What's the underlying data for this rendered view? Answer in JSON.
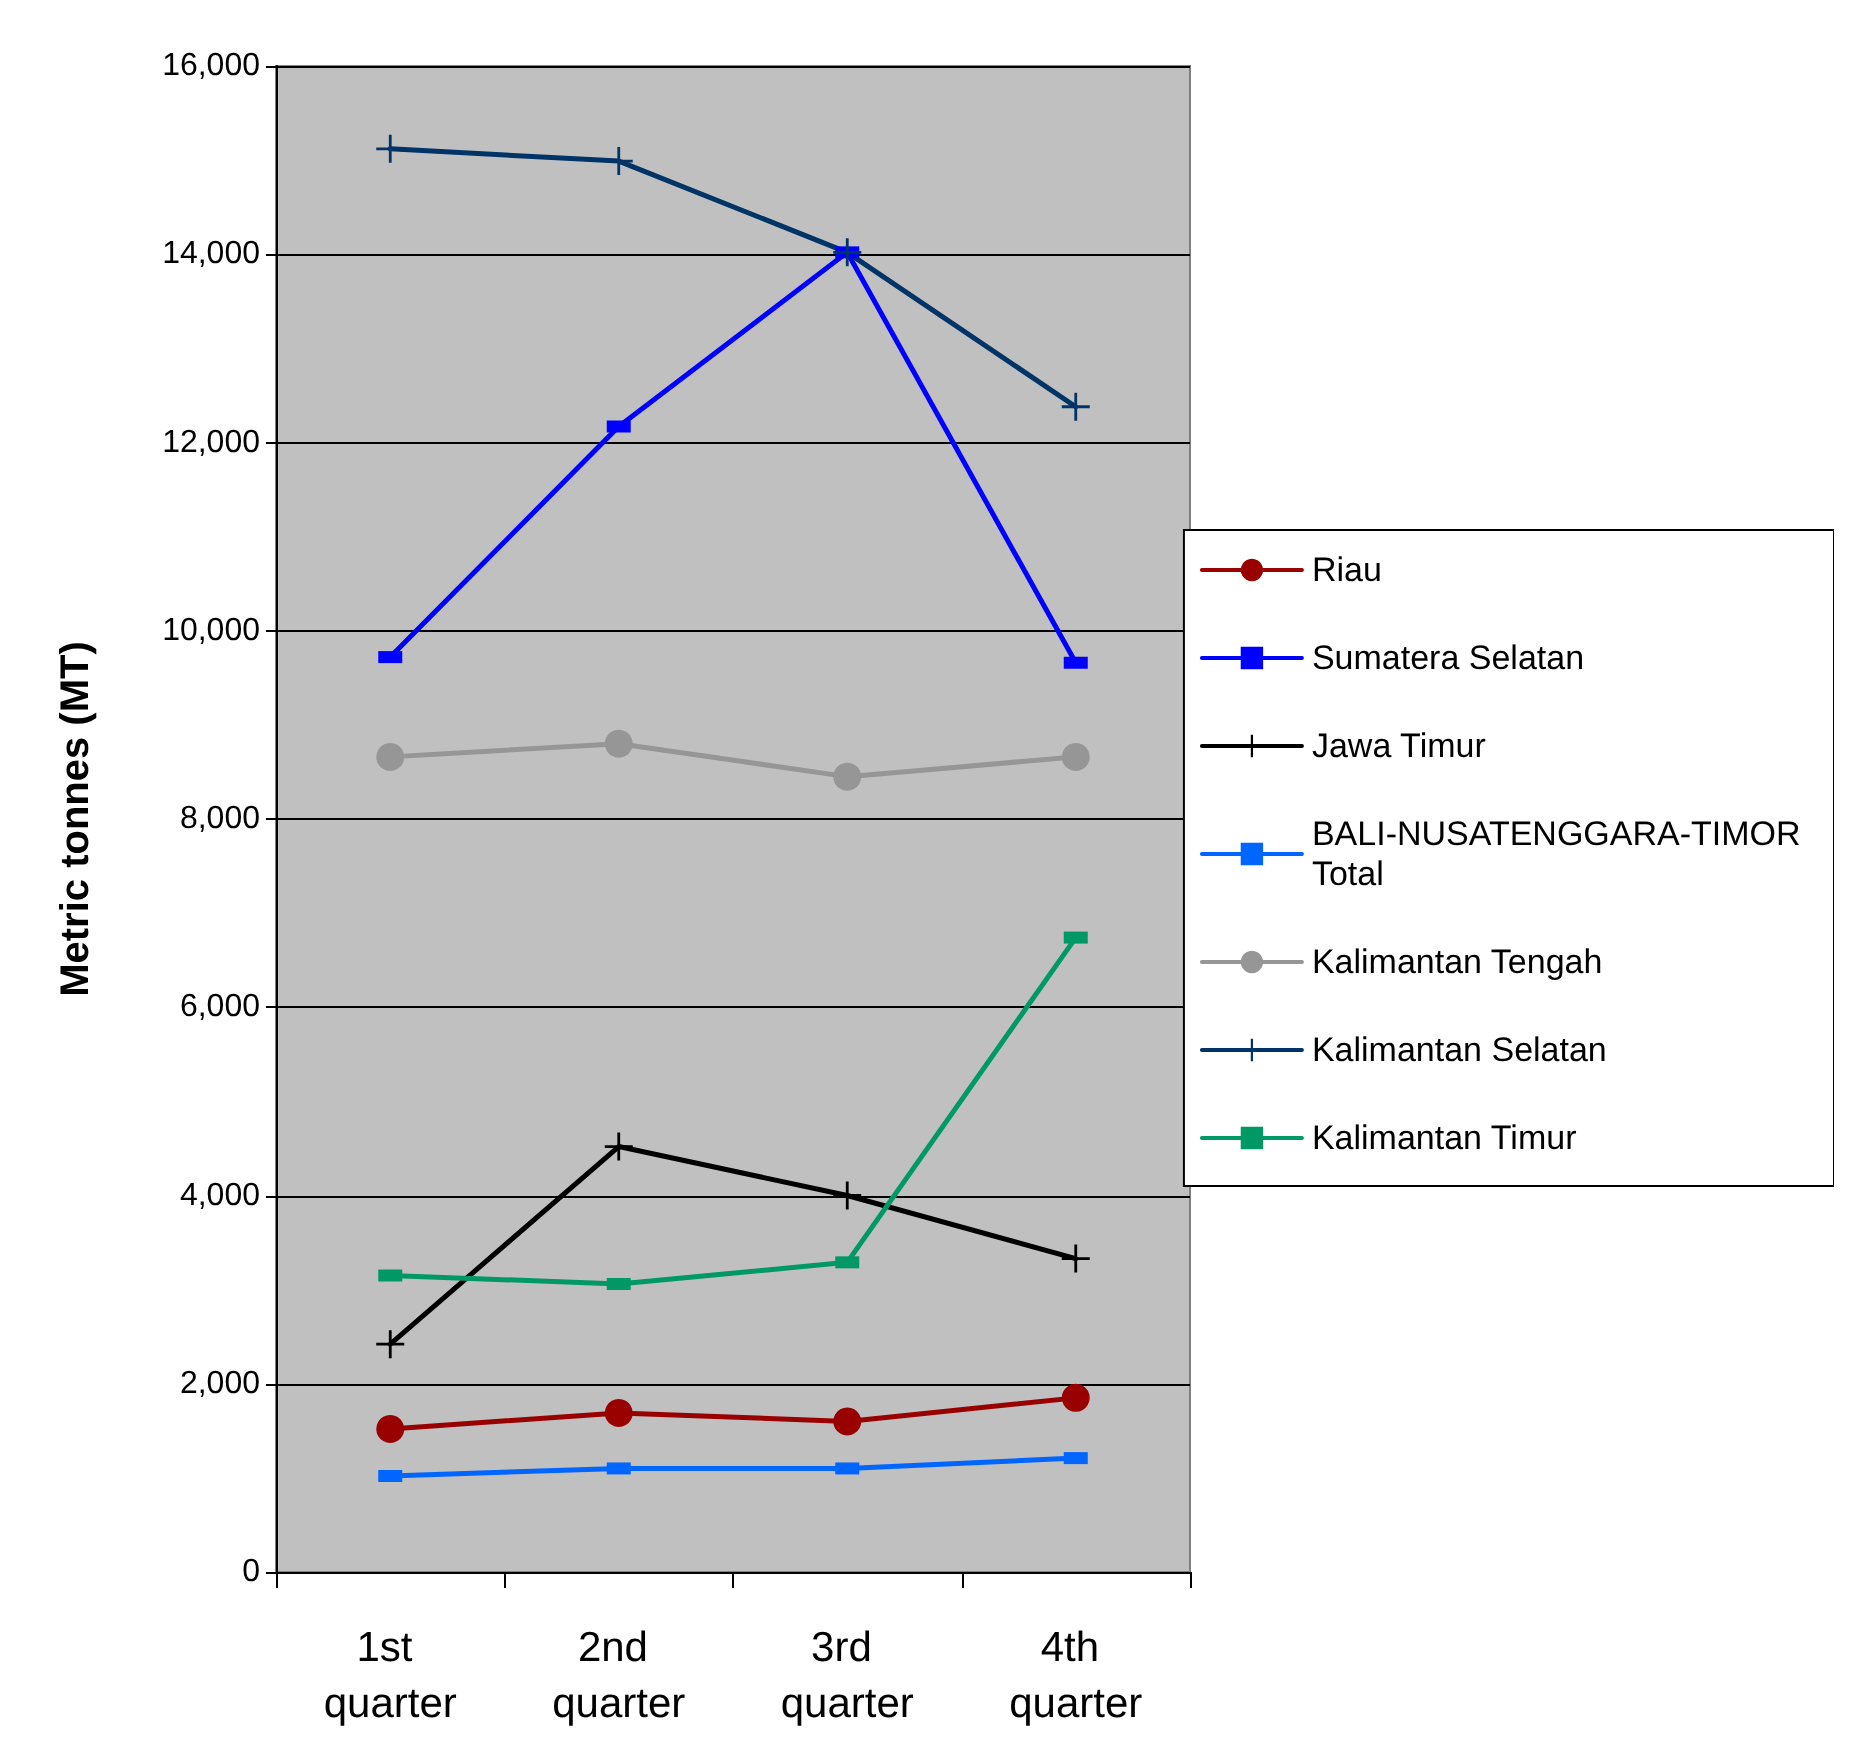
{
  "chart_data": {
    "type": "line",
    "ylabel": "Metric tonnes (MT)",
    "categories": [
      "1st quarter",
      "2nd quarter",
      "3rd quarter",
      "4th quarter"
    ],
    "ylim": [
      0,
      16000
    ],
    "yticks": [
      {
        "value": 0,
        "label": "0"
      },
      {
        "value": 2000,
        "label": "2,000"
      },
      {
        "value": 4000,
        "label": "4,000"
      },
      {
        "value": 6000,
        "label": "6,000"
      },
      {
        "value": 8000,
        "label": "8,000"
      },
      {
        "value": 10000,
        "label": "10,000"
      },
      {
        "value": 12000,
        "label": "12,000"
      },
      {
        "value": 14000,
        "label": "14,000"
      },
      {
        "value": 16000,
        "label": "16,000"
      }
    ],
    "grid": "y",
    "legend": "right",
    "line_style": "solid",
    "series": [
      {
        "name": "Riau",
        "color": "#990000",
        "marker": "circle",
        "values": [
          1520,
          1690,
          1600,
          1850
        ]
      },
      {
        "name": "Sumatera Selatan",
        "color": "#0000ff",
        "marker": "square",
        "values": [
          9720,
          12170,
          14020,
          9660
        ]
      },
      {
        "name": "Jawa Timur",
        "color": "#000000",
        "marker": "cross",
        "values": [
          2420,
          4520,
          4000,
          3330
        ]
      },
      {
        "name": "BALI-NUSATENGGARA-TIMOR Total",
        "color": "#0066ff",
        "marker": "square",
        "values": [
          1020,
          1100,
          1100,
          1210
        ]
      },
      {
        "name": "Kalimantan Tengah",
        "color": "#969696",
        "marker": "circle",
        "values": [
          8660,
          8800,
          8450,
          8660
        ]
      },
      {
        "name": "Kalimantan Selatan",
        "color": "#003366",
        "marker": "cross",
        "values": [
          15120,
          14990,
          14020,
          12380
        ]
      },
      {
        "name": "Kalimantan Timur",
        "color": "#009966",
        "marker": "square",
        "values": [
          3150,
          3060,
          3290,
          6740
        ]
      }
    ]
  }
}
